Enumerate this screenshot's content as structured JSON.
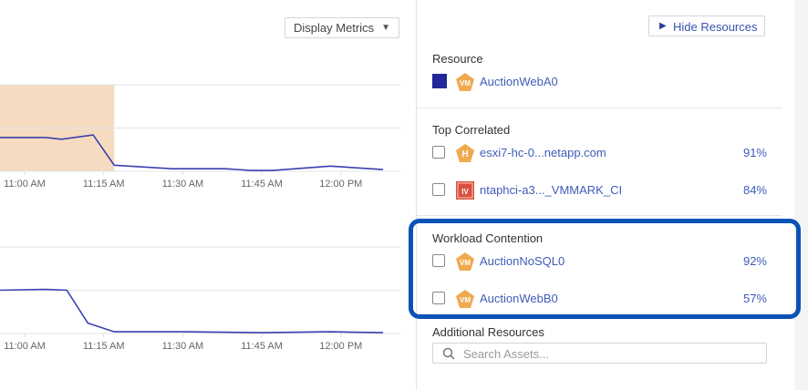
{
  "toolbar": {
    "display_metrics_label": "Display Metrics",
    "hide_resources_label": "Hide Resources"
  },
  "resource": {
    "heading": "Resource",
    "name": "AuctionWebA0",
    "type_badge": "VM",
    "color": "#23279a"
  },
  "top_correlated": {
    "heading": "Top Correlated",
    "items": [
      {
        "name": "esxi7-hc-0...netapp.com",
        "badge": "H",
        "percent": "91%",
        "badge_color": "#f0a94e"
      },
      {
        "name": "ntaphci-a3..._VMMARK_CI",
        "badge": "IV",
        "percent": "84%",
        "badge_color": "#d9503f"
      }
    ]
  },
  "workload_contention": {
    "heading": "Workload Contention",
    "items": [
      {
        "name": "AuctionNoSQL0",
        "badge": "VM",
        "percent": "92%"
      },
      {
        "name": "AuctionWebB0",
        "badge": "VM",
        "percent": "57%"
      }
    ]
  },
  "additional": {
    "heading": "Additional Resources",
    "search_placeholder": "Search Assets..."
  },
  "highlight_color": "#0a52b5",
  "chart_data": [
    {
      "type": "line",
      "x_ticks": [
        "11:00 AM",
        "11:15 AM",
        "11:30 AM",
        "11:45 AM",
        "12:00 PM"
      ],
      "grid": true,
      "highlight_range": [
        "10:55",
        "11:17"
      ],
      "highlight_color": "#f5dcc0",
      "line_color": "#3b3fb0",
      "series": [
        {
          "x": [
            "10:55",
            "11:04",
            "11:07",
            "11:13",
            "11:17",
            "11:28",
            "11:38",
            "11:43",
            "11:47",
            "11:58",
            "12:08"
          ],
          "y": [
            39,
            39,
            37,
            42,
            7,
            3,
            3,
            1,
            1,
            6,
            2
          ]
        }
      ]
    },
    {
      "type": "line",
      "x_ticks": [
        "11:00 AM",
        "11:15 AM",
        "11:30 AM",
        "11:45 AM",
        "12:00 PM"
      ],
      "grid": true,
      "line_color": "#3b3fb0",
      "series": [
        {
          "x": [
            "10:55",
            "11:04",
            "11:08",
            "11:12",
            "11:17",
            "11:30",
            "11:45",
            "11:58",
            "12:08"
          ],
          "y": [
            50,
            51,
            50,
            12,
            2,
            2,
            1,
            2,
            1
          ]
        }
      ]
    }
  ]
}
